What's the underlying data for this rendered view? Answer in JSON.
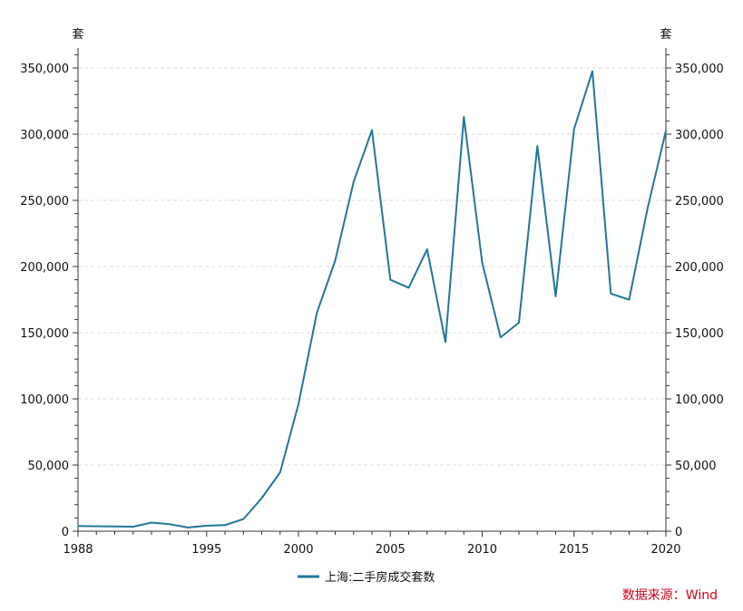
{
  "chart_data": {
    "type": "line",
    "x": [
      1988,
      1989,
      1990,
      1991,
      1992,
      1993,
      1994,
      1995,
      1996,
      1997,
      1998,
      1999,
      2000,
      2001,
      2002,
      2003,
      2004,
      2005,
      2006,
      2007,
      2008,
      2009,
      2010,
      2011,
      2012,
      2013,
      2014,
      2015,
      2016,
      2017,
      2018,
      2019,
      2020
    ],
    "series": [
      {
        "name": "上海:二手房成交套数",
        "color": "#21769e",
        "values": [
          4000,
          3800,
          3600,
          3400,
          6500,
          5300,
          2800,
          4200,
          4600,
          9200,
          25000,
          44500,
          96000,
          165000,
          204500,
          264000,
          303000,
          190000,
          184000,
          213000,
          143000,
          313000,
          203000,
          146500,
          157500,
          291000,
          177500,
          304000,
          347500,
          179500,
          175000,
          244000,
          302500
        ]
      }
    ],
    "xlim": [
      1988,
      2020
    ],
    "ylim": [
      0,
      360000
    ],
    "x_ticks": [
      1988,
      1995,
      2000,
      2005,
      2010,
      2015,
      2020
    ],
    "y_ticks": [
      0,
      50000,
      100000,
      150000,
      200000,
      250000,
      300000,
      350000
    ],
    "y_tick_labels": [
      "0",
      "50,000",
      "100,000",
      "150,000",
      "200,000",
      "250,000",
      "300,000",
      "350,000"
    ],
    "ylabel_left": "套",
    "ylabel_right": "套",
    "grid": true,
    "legend_position": "bottom-center"
  },
  "source_text": "数据来源：Wind"
}
